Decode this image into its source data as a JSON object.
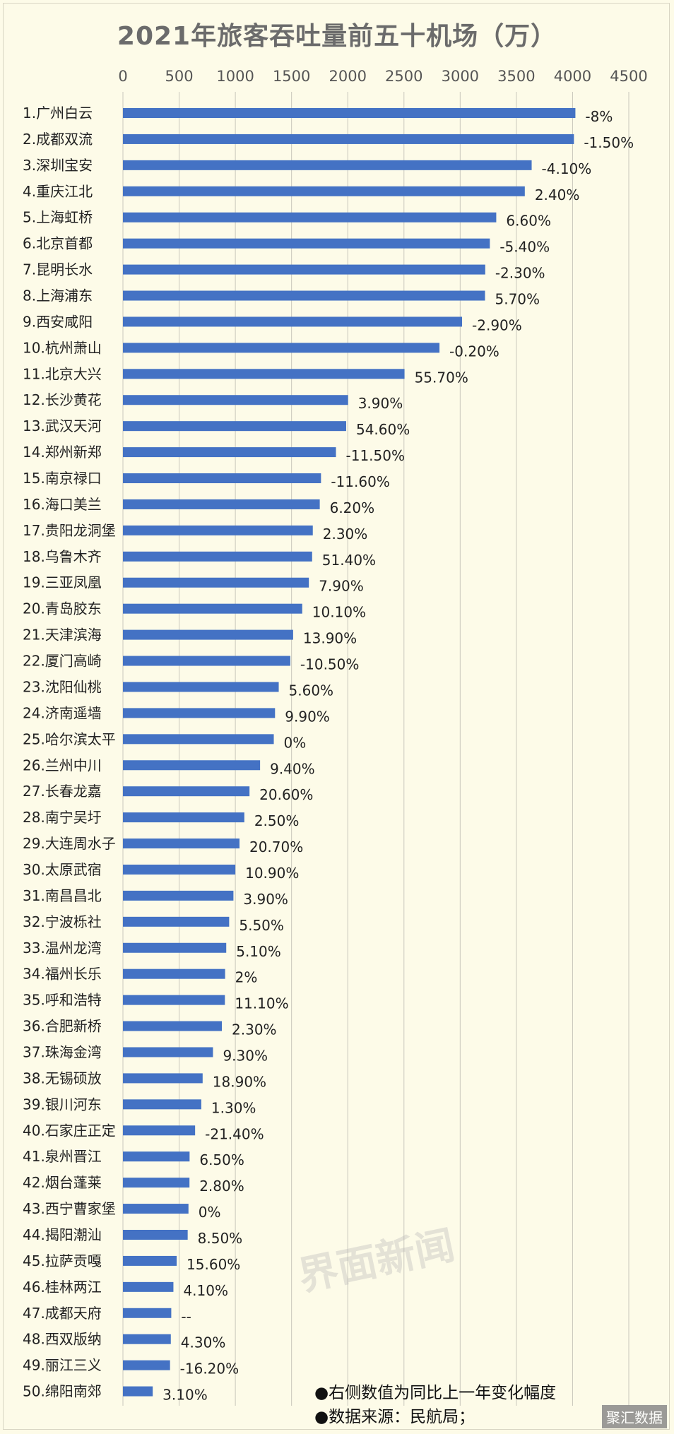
{
  "chart_data": {
    "type": "bar",
    "orientation": "horizontal",
    "title": "2021年旅客吞吐量前五十机场（万）",
    "xlim": [
      0,
      4500
    ],
    "xticks": [
      0,
      500,
      1000,
      1500,
      2000,
      2500,
      3000,
      3500,
      4000,
      4500
    ],
    "grid": true,
    "bar_color": "#4472c4",
    "categories": [
      "1.广州白云",
      "2.成都双流",
      "3.深圳宝安",
      "4.重庆江北",
      "5.上海虹桥",
      "6.北京首都",
      "7.昆明长水",
      "8.上海浦东",
      "9.西安咸阳",
      "10.杭州萧山",
      "11.北京大兴",
      "12.长沙黄花",
      "13.武汉天河",
      "14.郑州新郑",
      "15.南京禄口",
      "16.海口美兰",
      "17.贵阳龙洞堡",
      "18.乌鲁木齐",
      "19.三亚凤凰",
      "20.青岛胶东",
      "21.天津滨海",
      "22.厦门高崎",
      "23.沈阳仙桃",
      "24.济南遥墙",
      "25.哈尔滨太平",
      "26.兰州中川",
      "27.长春龙嘉",
      "28.南宁吴圩",
      "29.大连周水子",
      "30.太原武宿",
      "31.南昌昌北",
      "32.宁波栎社",
      "33.温州龙湾",
      "34.福州长乐",
      "35.呼和浩特",
      "36.合肥新桥",
      "37.珠海金湾",
      "38.无锡硕放",
      "39.银川河东",
      "40.石家庄正定",
      "41.泉州晋江",
      "42.烟台蓬莱",
      "43.西宁曹家堡",
      "44.揭阳潮汕",
      "45.拉萨贡嘎",
      "46.桂林两江",
      "47.成都天府",
      "48.西双版纳",
      "49.丽江三义",
      "50.绵阳南郊"
    ],
    "values": [
      4025,
      4012,
      3636,
      3575,
      3321,
      3264,
      3223,
      3221,
      3017,
      2816,
      2505,
      2003,
      1986,
      1895,
      1762,
      1751,
      1689,
      1683,
      1654,
      1595,
      1514,
      1489,
      1386,
      1353,
      1342,
      1220,
      1126,
      1080,
      1037,
      1000,
      983,
      945,
      919,
      909,
      907,
      880,
      801,
      709,
      697,
      642,
      593,
      592,
      583,
      576,
      478,
      449,
      430,
      426,
      419,
      265
    ],
    "labels": [
      "-8%",
      "-1.50%",
      "-4.10%",
      "2.40%",
      "6.60%",
      "-5.40%",
      "-2.30%",
      "5.70%",
      "-2.90%",
      "-0.20%",
      "55.70%",
      "3.90%",
      "54.60%",
      "-11.50%",
      "-11.60%",
      "6.20%",
      "2.30%",
      "51.40%",
      "7.90%",
      "10.10%",
      "13.90%",
      "-10.50%",
      "5.60%",
      "9.90%",
      "0%",
      "9.40%",
      "20.60%",
      "2.50%",
      "20.70%",
      "10.90%",
      "3.90%",
      "5.50%",
      "5.10%",
      "2%",
      "11.10%",
      "2.30%",
      "9.30%",
      "18.90%",
      "1.30%",
      "-21.40%",
      "6.50%",
      "2.80%",
      "0%",
      "8.50%",
      "15.60%",
      "4.10%",
      "--",
      "4.30%",
      "-16.20%",
      "3.10%"
    ]
  },
  "notes": {
    "note1": "●右侧数值为同比上一年变化幅度",
    "note2": "●数据来源：民航局；"
  },
  "watermark": "界面新闻",
  "corner_mark": "聚汇数据"
}
